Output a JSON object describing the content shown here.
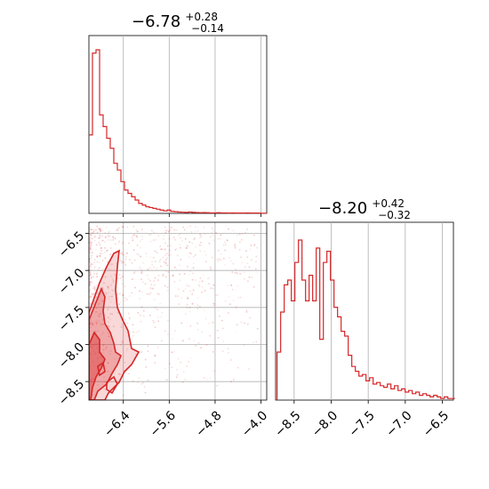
{
  "chart_data": [
    {
      "type": "histogram",
      "panel": "top-left",
      "title": {
        "median": "−6.78",
        "upper": "+0.28",
        "lower": "−0.14"
      },
      "xlim": [
        -7.0,
        -3.9
      ],
      "x_ticks": [
        "−6.4",
        "−5.6",
        "−4.8",
        "−4.0"
      ],
      "x_tick_values": [
        -6.4,
        -5.6,
        -4.8,
        -4.0
      ],
      "grid": true,
      "color": "#d62728",
      "bin_width": 0.062,
      "counts": [
        0.47,
        0.96,
        0.98,
        0.59,
        0.52,
        0.45,
        0.39,
        0.3,
        0.26,
        0.19,
        0.14,
        0.12,
        0.1,
        0.08,
        0.06,
        0.05,
        0.04,
        0.035,
        0.03,
        0.025,
        0.02,
        0.015,
        0.02,
        0.012,
        0.01,
        0.008,
        0.007,
        0.006,
        0.008,
        0.006,
        0.005,
        0.004,
        0.005,
        0.004,
        0.003,
        0.003,
        0.004,
        0.003,
        0.003,
        0.002,
        0.003,
        0.002,
        0.002,
        0.002,
        0.003,
        0.002,
        0.002,
        0.002,
        0.001,
        0.001
      ]
    },
    {
      "type": "scatter",
      "panel": "bottom-left",
      "xlim": [
        -7.0,
        -3.9
      ],
      "ylim": [
        -8.75,
        -6.35
      ],
      "x_ticks": [
        "−6.4",
        "−5.6",
        "−4.8",
        "−4.0"
      ],
      "x_tick_values": [
        -6.4,
        -5.6,
        -4.8,
        -4.0
      ],
      "y_ticks": [
        "−6.5",
        "−7.0",
        "−7.5",
        "−8.0",
        "−8.5"
      ],
      "y_tick_values": [
        -6.5,
        -7.0,
        -7.5,
        -8.0,
        -8.5
      ],
      "grid": true,
      "color": "#d62728",
      "contour_levels": [
        "outer",
        "middle",
        "inner"
      ]
    },
    {
      "type": "histogram",
      "panel": "bottom-right",
      "title": {
        "median": "−8.20",
        "upper": "+0.42",
        "lower": "−0.32"
      },
      "xlim": [
        -8.75,
        -6.35
      ],
      "x_ticks": [
        "−8.5",
        "−8.0",
        "−7.5",
        "−7.0",
        "−6.5"
      ],
      "x_tick_values": [
        -8.5,
        -8.0,
        -7.5,
        -7.0,
        -6.5
      ],
      "grid": true,
      "color": "#d62728",
      "bin_width": 0.048,
      "counts": [
        0.3,
        0.55,
        0.72,
        0.75,
        0.62,
        0.86,
        1.0,
        0.75,
        0.62,
        0.78,
        0.62,
        0.95,
        0.38,
        0.86,
        0.93,
        0.75,
        0.58,
        0.52,
        0.43,
        0.4,
        0.28,
        0.21,
        0.18,
        0.15,
        0.16,
        0.12,
        0.14,
        0.1,
        0.11,
        0.09,
        0.08,
        0.1,
        0.07,
        0.09,
        0.06,
        0.07,
        0.05,
        0.06,
        0.04,
        0.05,
        0.03,
        0.04,
        0.03,
        0.02,
        0.03,
        0.02,
        0.01,
        0.02,
        0.01,
        0.01
      ]
    }
  ]
}
